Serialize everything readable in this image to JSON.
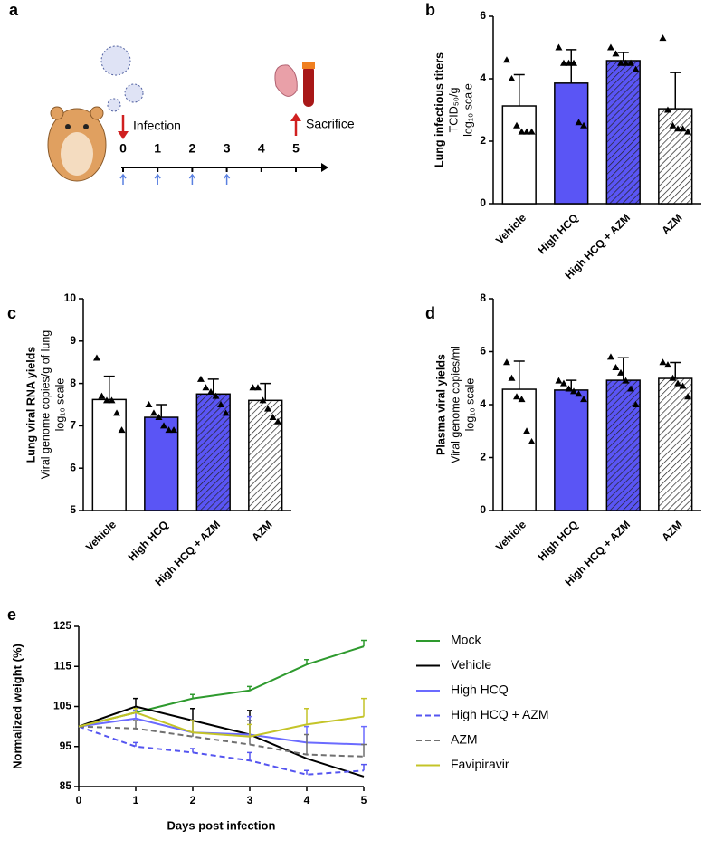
{
  "diagram": {
    "panel": "a",
    "days": [
      0,
      1,
      2,
      3,
      4,
      5
    ],
    "treatment_days": [
      0,
      1,
      2,
      3
    ],
    "infection": "Infection",
    "sacrifice": "Sacrifice"
  },
  "chart_data": [
    {
      "type": "bar",
      "panel": "b",
      "ylabel": [
        "Lung infectious titers",
        "TCID₅₀/g",
        "log₁₀ scale"
      ],
      "categories": [
        "Vehicle",
        "High HCQ",
        "High HCQ + AZM",
        "AZM"
      ],
      "values": [
        3.13,
        3.86,
        4.58,
        3.04
      ],
      "errors": [
        1.0,
        1.07,
        0.26,
        1.16
      ],
      "points": [
        [
          4.6,
          4.0,
          2.5,
          2.3,
          2.3,
          2.3
        ],
        [
          5.0,
          4.5,
          4.5,
          4.5,
          2.6,
          2.5
        ],
        [
          5.0,
          4.8,
          4.5,
          4.5,
          4.5,
          4.3
        ],
        [
          5.3,
          3.0,
          2.5,
          2.4,
          2.4,
          2.3
        ]
      ],
      "colors": [
        "#ffffff",
        "#5a55f5",
        "#5a55f5",
        "#ffffff"
      ],
      "hatch": [
        false,
        false,
        true,
        true
      ],
      "ylim": [
        0,
        6
      ],
      "yticks": [
        0,
        2,
        4,
        6
      ]
    },
    {
      "type": "bar",
      "panel": "c",
      "ylabel": [
        "Lung viral RNA yields",
        "Viral genome copies/g of lung",
        "log₁₀ scale"
      ],
      "categories": [
        "Vehicle",
        "High HCQ",
        "High HCQ + AZM",
        "AZM"
      ],
      "values": [
        7.62,
        7.2,
        7.75,
        7.6
      ],
      "errors": [
        0.55,
        0.3,
        0.35,
        0.4
      ],
      "points": [
        [
          8.6,
          7.7,
          7.6,
          7.6,
          7.3,
          6.9
        ],
        [
          7.5,
          7.3,
          7.2,
          7.0,
          6.9,
          6.9
        ],
        [
          8.1,
          7.9,
          7.8,
          7.7,
          7.5,
          7.3
        ],
        [
          7.9,
          7.9,
          7.6,
          7.4,
          7.2,
          7.1
        ]
      ],
      "colors": [
        "#ffffff",
        "#5a55f5",
        "#5a55f5",
        "#ffffff"
      ],
      "hatch": [
        false,
        false,
        true,
        true
      ],
      "ylim": [
        5,
        10
      ],
      "yticks": [
        5,
        6,
        7,
        8,
        9,
        10
      ]
    },
    {
      "type": "bar",
      "panel": "d",
      "ylabel": [
        "Plasma viral yields",
        "Viral genome copies/ml",
        "log₁₀ scale"
      ],
      "categories": [
        "Vehicle",
        "High HCQ",
        "High HCQ + AZM",
        "AZM"
      ],
      "values": [
        4.58,
        4.55,
        4.92,
        4.99
      ],
      "errors": [
        1.06,
        0.37,
        0.85,
        0.6
      ],
      "points": [
        [
          5.6,
          5.0,
          4.3,
          4.2,
          3.0,
          2.6
        ],
        [
          4.9,
          4.8,
          4.6,
          4.5,
          4.4,
          4.2
        ],
        [
          5.8,
          5.4,
          5.2,
          4.9,
          4.6,
          4.0
        ],
        [
          5.6,
          5.5,
          5.0,
          4.8,
          4.7,
          4.3
        ]
      ],
      "colors": [
        "#ffffff",
        "#5a55f5",
        "#5a55f5",
        "#ffffff"
      ],
      "hatch": [
        false,
        false,
        true,
        true
      ],
      "ylim": [
        0,
        8
      ],
      "yticks": [
        0,
        2,
        4,
        6,
        8
      ]
    },
    {
      "type": "line",
      "panel": "e",
      "xlabel": "Days post infection",
      "ylabel": "Normalized weight (%)",
      "x": [
        0,
        1,
        2,
        3,
        4,
        5
      ],
      "xlim": [
        0,
        5
      ],
      "xticks": [
        0,
        1,
        2,
        3,
        4,
        5
      ],
      "ylim": [
        85,
        125
      ],
      "yticks": [
        85,
        95,
        105,
        115,
        125
      ],
      "legend": "right",
      "series": [
        {
          "name": "Mock",
          "color": "#2e9a2e",
          "dashed": false,
          "values": [
            100,
            103.5,
            107,
            109,
            115.5,
            120
          ],
          "errors": [
            0,
            0.5,
            1,
            1,
            1.2,
            1.5
          ]
        },
        {
          "name": "Vehicle",
          "color": "#000000",
          "dashed": false,
          "values": [
            100,
            105,
            101.5,
            98,
            92,
            87.5
          ],
          "errors": [
            0,
            2,
            3,
            6,
            0,
            0
          ]
        },
        {
          "name": "High HCQ",
          "color": "#6b6bff",
          "dashed": false,
          "values": [
            100,
            102,
            98.5,
            98,
            96,
            95.5
          ],
          "errors": [
            0,
            2,
            3,
            4.5,
            4,
            4.5
          ]
        },
        {
          "name": "High HCQ + AZM",
          "color": "#5555f0",
          "dashed": true,
          "values": [
            100,
            95,
            93.5,
            91.5,
            88,
            89
          ],
          "errors": [
            0,
            1,
            1,
            2,
            1,
            1.5
          ]
        },
        {
          "name": "AZM",
          "color": "#707070",
          "dashed": true,
          "values": [
            100,
            99.5,
            97.5,
            95.5,
            93,
            92.5
          ],
          "errors": [
            0,
            2,
            4,
            6,
            5,
            3
          ]
        },
        {
          "name": "Favipiravir",
          "color": "#c4c428",
          "dashed": false,
          "values": [
            100,
            103.5,
            98.5,
            97.5,
            100.5,
            102.5
          ],
          "errors": [
            0,
            1,
            3,
            3,
            4,
            4.5
          ]
        }
      ]
    }
  ]
}
